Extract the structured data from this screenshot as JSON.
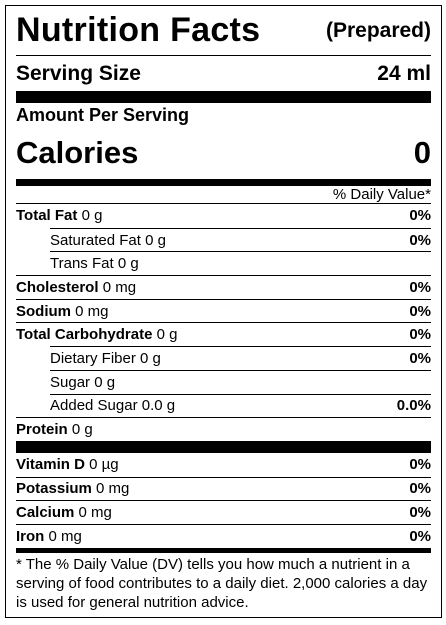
{
  "header": {
    "title": "Nutrition Facts",
    "note": "(Prepared)"
  },
  "serving": {
    "label": "Serving Size",
    "value": "24 ml"
  },
  "amount_per_serving": "Amount Per Serving",
  "calories": {
    "label": "Calories",
    "value": "0"
  },
  "daily_value_header": "% Daily Value*",
  "rows": [
    {
      "name": "Total Fat",
      "amount": "0 g",
      "dv": "0%",
      "sub": [
        {
          "name": "Saturated Fat",
          "amount": "0 g",
          "dv": "0%"
        },
        {
          "name": "Trans Fat",
          "amount": "0 g"
        }
      ]
    },
    {
      "name": "Cholesterol",
      "amount": "0 mg",
      "dv": "0%"
    },
    {
      "name": "Sodium",
      "amount": "0 mg",
      "dv": "0%"
    },
    {
      "name": "Total Carbohydrate",
      "amount": "0 g",
      "dv": "0%",
      "sub": [
        {
          "name": "Dietary Fiber",
          "amount": "0 g",
          "dv": "0%"
        },
        {
          "name": "Sugar",
          "amount": "0 g"
        },
        {
          "name": "Added Sugar",
          "amount": "0.0 g",
          "dv": "0.0%"
        }
      ]
    },
    {
      "name": "Protein",
      "amount": "0 g"
    }
  ],
  "vitamins": [
    {
      "name": "Vitamin D",
      "amount": "0 µg",
      "dv": "0%"
    },
    {
      "name": "Potassium",
      "amount": "0 mg",
      "dv": "0%"
    },
    {
      "name": "Calcium",
      "amount": "0 mg",
      "dv": "0%"
    },
    {
      "name": "Iron",
      "amount": "0 mg",
      "dv": "0%"
    }
  ],
  "footnote": "* The % Daily Value (DV) tells you how much a nutrient in a serving of food contributes to a daily diet. 2,000 calories a day is used for general nutrition advice."
}
